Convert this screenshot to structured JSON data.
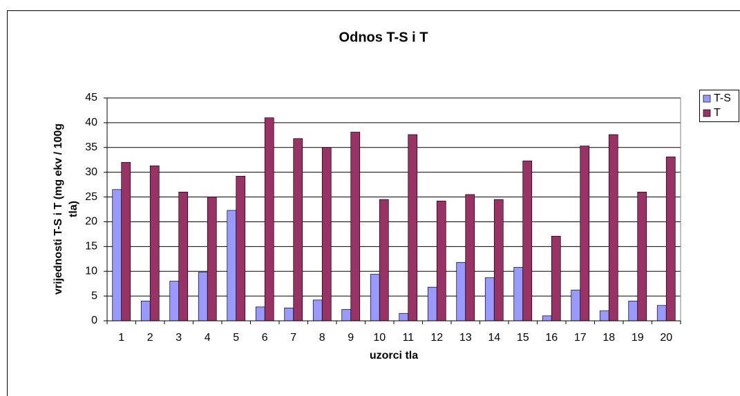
{
  "chart_data": {
    "type": "bar",
    "title": "Odnos T-S i T",
    "xlabel": "uzorci tla",
    "ylabel": [
      "vrijednosti T-S i T (mg ekv / 100g",
      "tla)"
    ],
    "categories": [
      "1",
      "2",
      "3",
      "4",
      "5",
      "6",
      "7",
      "8",
      "9",
      "10",
      "11",
      "12",
      "13",
      "14",
      "15",
      "16",
      "17",
      "18",
      "19",
      "20"
    ],
    "series": [
      {
        "name": "T-S",
        "color": "#9999ff",
        "values": [
          26.5,
          4,
          8,
          9.8,
          22.3,
          2.8,
          2.6,
          4.2,
          2.3,
          9.4,
          1.5,
          6.8,
          11.8,
          8.7,
          10.8,
          1,
          6.2,
          2,
          4,
          3.1
        ]
      },
      {
        "name": "T",
        "color": "#993366",
        "values": [
          32,
          31.3,
          26,
          25,
          29.2,
          41,
          36.8,
          35,
          38.1,
          24.5,
          37.6,
          24.2,
          25.5,
          24.5,
          32.3,
          17.1,
          35.3,
          37.6,
          26,
          33.1
        ]
      }
    ],
    "ylim": [
      0,
      45
    ],
    "yticks": [
      0,
      5,
      10,
      15,
      20,
      25,
      30,
      35,
      40,
      45
    ],
    "grid": true,
    "legend": "right"
  }
}
